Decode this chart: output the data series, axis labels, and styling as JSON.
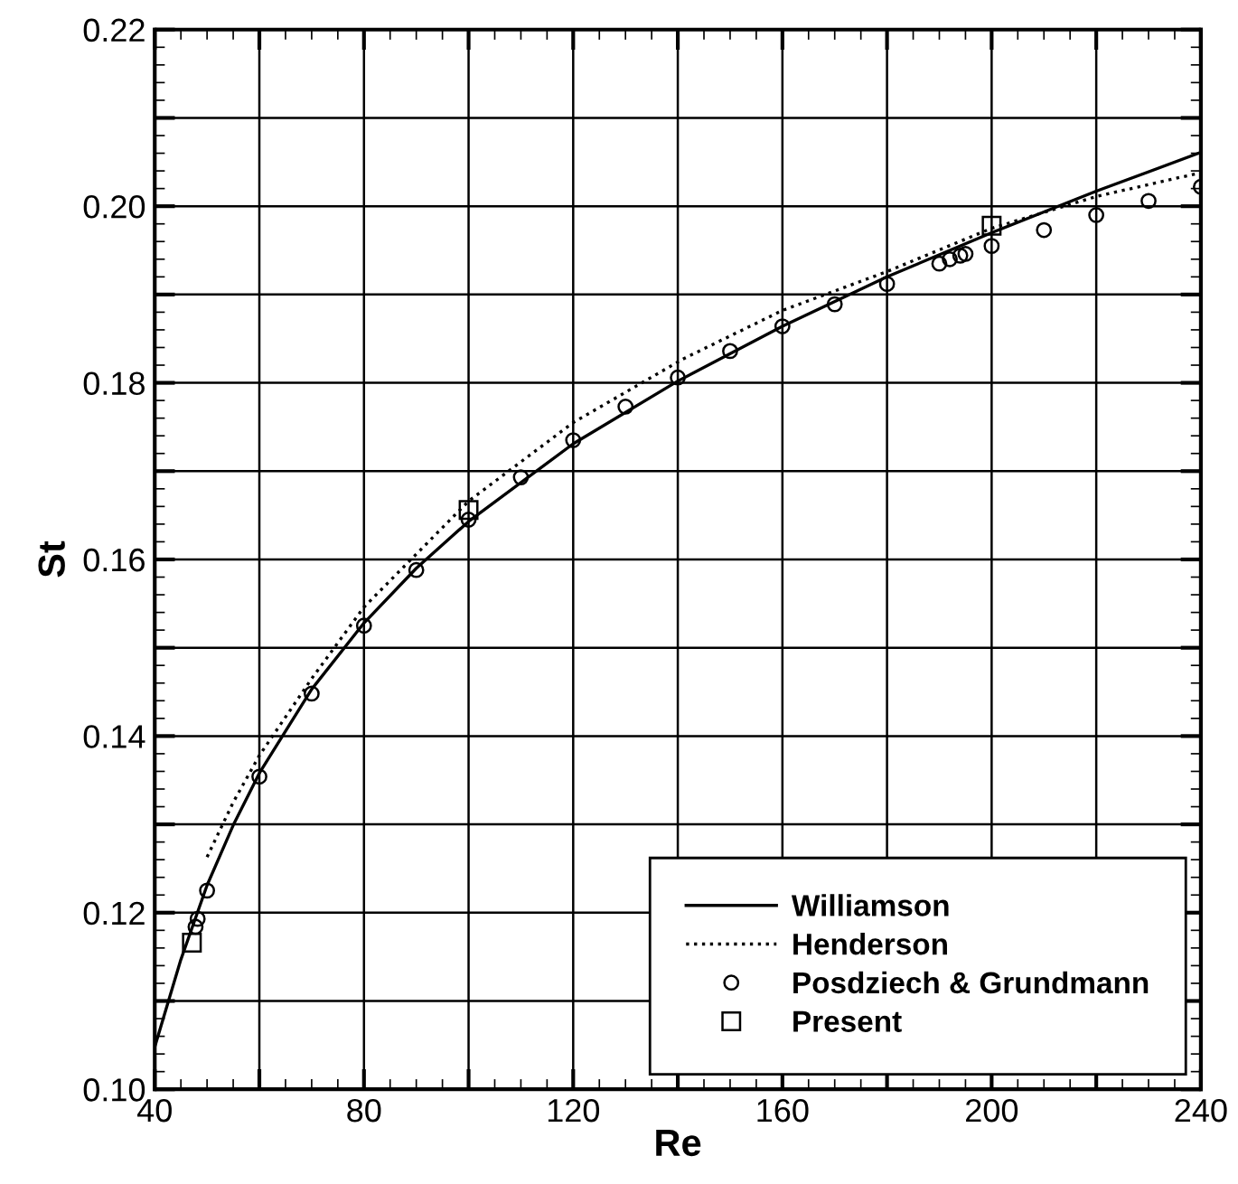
{
  "chart_data": {
    "type": "line",
    "xlabel": "Re",
    "ylabel": "St",
    "xlim": [
      40,
      240
    ],
    "ylim": [
      0.1,
      0.22
    ],
    "xticks": [
      40,
      {
        "value": 60,
        "label": null
      },
      80,
      {
        "value": 100,
        "label": null
      },
      120,
      {
        "value": 140,
        "label": null
      },
      160,
      {
        "value": 180,
        "label": null
      },
      200,
      {
        "value": 220,
        "label": null
      },
      240
    ],
    "yticks": [
      {
        "value": 0.1,
        "label": "0.10"
      },
      {
        "value": 0.11,
        "label": null
      },
      {
        "value": 0.12,
        "label": "0.12"
      },
      {
        "value": 0.13,
        "label": null
      },
      {
        "value": 0.14,
        "label": "0.14"
      },
      {
        "value": 0.15,
        "label": null
      },
      {
        "value": 0.16,
        "label": "0.16"
      },
      {
        "value": 0.17,
        "label": null
      },
      {
        "value": 0.18,
        "label": "0.18"
      },
      {
        "value": 0.19,
        "label": null
      },
      {
        "value": 0.2,
        "label": "0.20"
      },
      {
        "value": 0.21,
        "label": null
      },
      {
        "value": 0.22,
        "label": "0.22"
      }
    ],
    "grid": true,
    "legend": "bottom right",
    "series": [
      {
        "name": "Williamson",
        "type": "line",
        "line_style": "solid",
        "marker": "none",
        "color": "#000000",
        "x": [
          40,
          45,
          50,
          55,
          60,
          70,
          80,
          90,
          100,
          120,
          140,
          160,
          180,
          200,
          220,
          240
        ],
        "values": [
          0.1048,
          0.1147,
          0.1231,
          0.1299,
          0.1358,
          0.1453,
          0.1528,
          0.159,
          0.1643,
          0.1731,
          0.1802,
          0.1864,
          0.192,
          0.197,
          0.2017,
          0.2061
        ]
      },
      {
        "name": "Henderson",
        "type": "line",
        "line_style": "dotted",
        "marker": "none",
        "color": "#000000",
        "x": [
          50,
          55,
          60,
          70,
          80,
          100,
          120,
          141,
          160,
          180,
          200,
          220,
          240
        ],
        "values": [
          0.1263,
          0.1325,
          0.1378,
          0.1465,
          0.1546,
          0.1666,
          0.1755,
          0.1827,
          0.1882,
          0.1926,
          0.1975,
          0.2011,
          0.2038
        ]
      },
      {
        "name": "Posdziech & Grundmann",
        "type": "scatter",
        "marker": "circle",
        "color": "#000000",
        "x": [
          47.8,
          48.2,
          50,
          60,
          70,
          80,
          90,
          100,
          110,
          120,
          130,
          140,
          150,
          160,
          170,
          180,
          190,
          192,
          194,
          195,
          200,
          210,
          220,
          230,
          240
        ],
        "values": [
          0.1184,
          0.1193,
          0.1225,
          0.1354,
          0.1448,
          0.1525,
          0.1588,
          0.1645,
          0.1693,
          0.1735,
          0.1773,
          0.1806,
          0.1836,
          0.1864,
          0.1889,
          0.1912,
          0.1935,
          0.194,
          0.1944,
          0.1946,
          0.1955,
          0.1973,
          0.199,
          0.2006,
          0.2022
        ]
      },
      {
        "name": "Present",
        "type": "scatter",
        "marker": "square",
        "color": "#000000",
        "x": [
          47.1,
          100,
          200
        ],
        "values": [
          0.1166,
          0.1656,
          0.1978
        ]
      }
    ]
  }
}
